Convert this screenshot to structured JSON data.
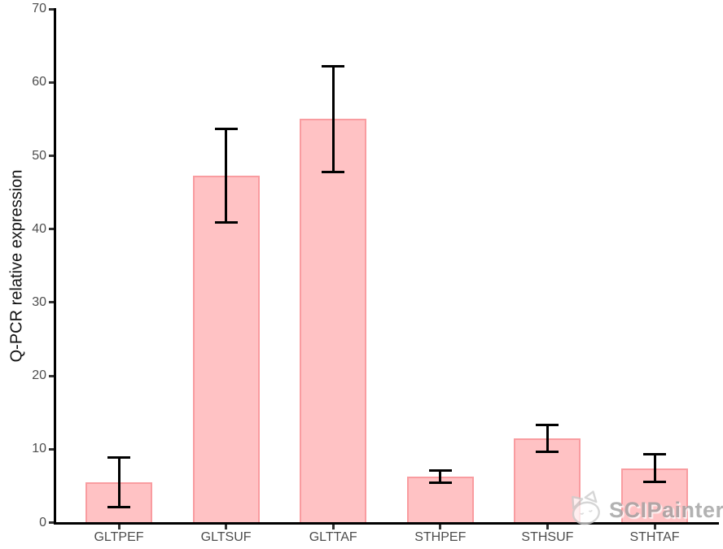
{
  "chart_data": {
    "type": "bar",
    "title": "",
    "xlabel": "",
    "ylabel": "Q-PCR relative expression",
    "ylim": [
      0,
      70
    ],
    "yticks": [
      0,
      10,
      20,
      30,
      40,
      50,
      60,
      70
    ],
    "grid": false,
    "legend": false,
    "categories": [
      "GLTPEF",
      "GLTSUF",
      "GLTTAF",
      "STHPEF",
      "STHSUF",
      "STHTAF"
    ],
    "series": [
      {
        "name": "Q-PCR relative expression",
        "values": [
          5.5,
          47.3,
          55.0,
          6.3,
          11.5,
          7.4
        ],
        "error_low": [
          2.1,
          40.9,
          47.8,
          5.4,
          9.7,
          5.5
        ],
        "error_high": [
          8.9,
          53.7,
          62.2,
          7.1,
          13.3,
          9.3
        ]
      }
    ],
    "colors": {
      "bar_fill": "#FFC2C4",
      "bar_border": "#F99CA0",
      "error_bar": "#000000",
      "axis_line": "#000000",
      "tick_label": "#4D4D4D",
      "axis_title": "#111111"
    }
  },
  "watermark": {
    "label": "SCIPainter",
    "icon": "cat-logo-icon"
  }
}
